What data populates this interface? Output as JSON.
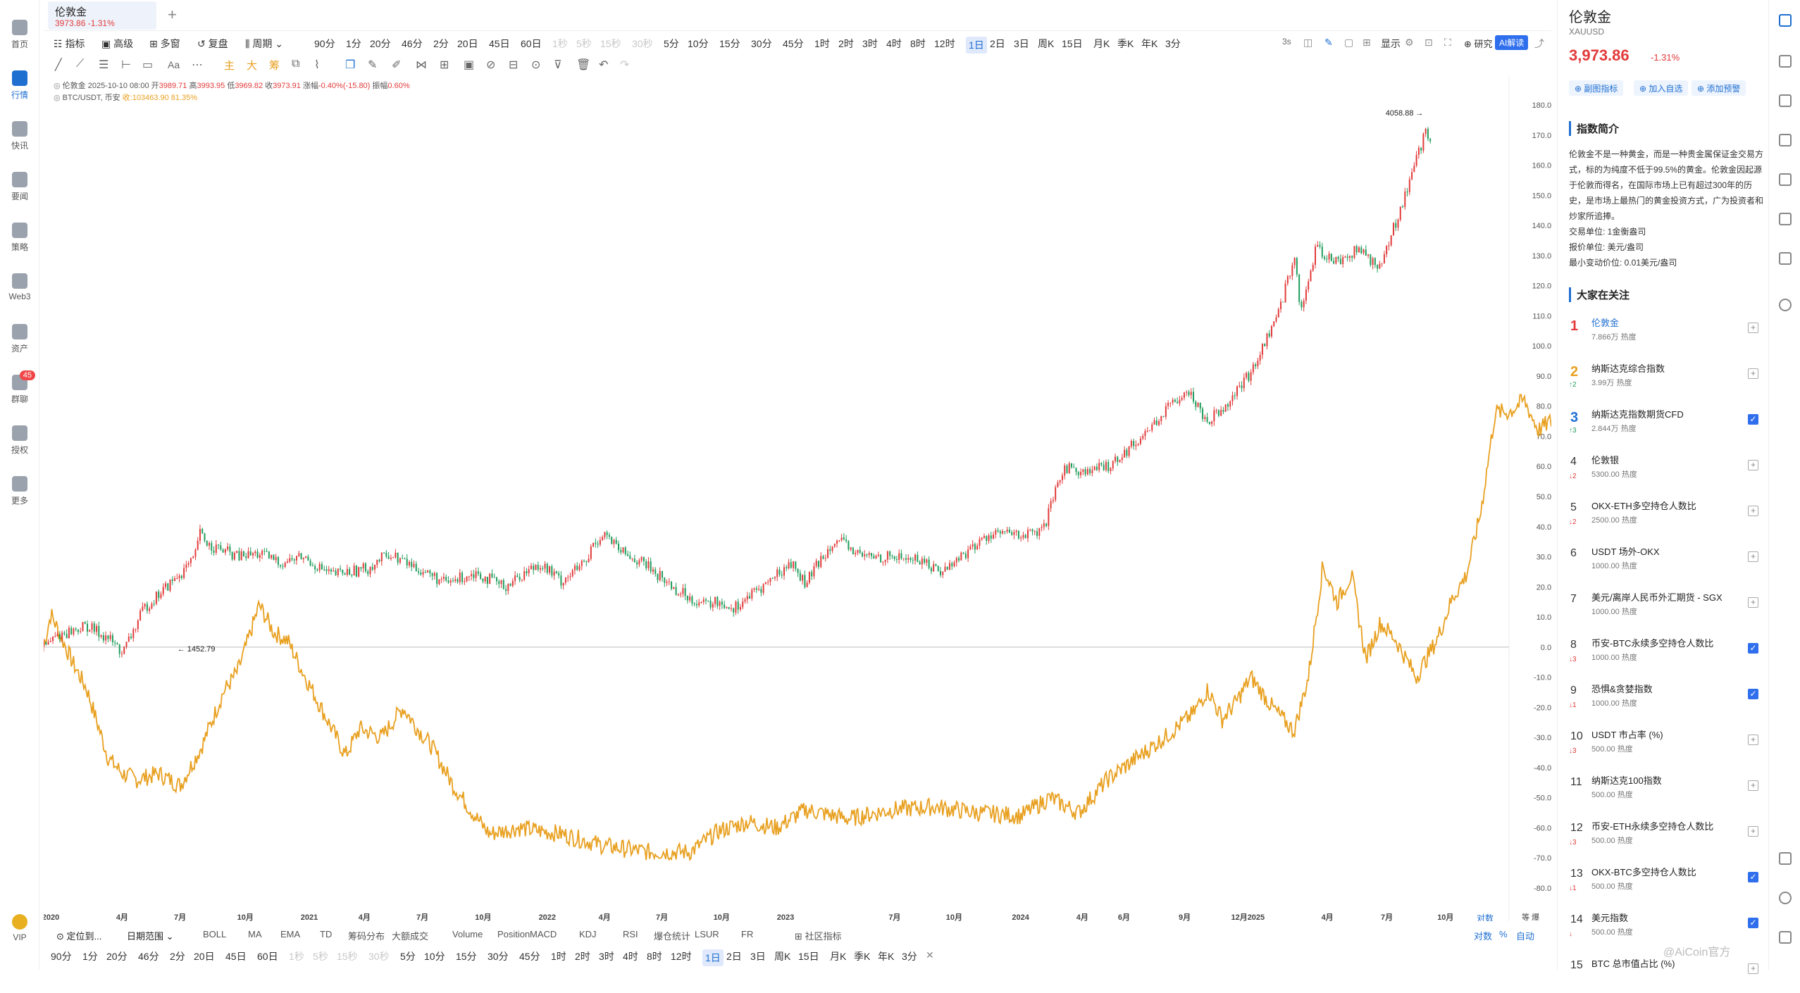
{
  "colors": {
    "up": "#e23a3a",
    "down": "#1f9d5c",
    "accent": "#1f6fd1",
    "btc_line": "#e8a020",
    "ai": "#2f6fed"
  },
  "left_nav": [
    {
      "label": "首页",
      "icon": "home-icon"
    },
    {
      "label": "行情",
      "icon": "chart-icon",
      "active": true
    },
    {
      "label": "快讯",
      "icon": "news-icon"
    },
    {
      "label": "要闻",
      "icon": "article-icon"
    },
    {
      "label": "策略",
      "icon": "strategy-icon"
    },
    {
      "label": "Web3",
      "icon": "web3-icon"
    },
    {
      "label": "资产",
      "icon": "wallet-icon"
    },
    {
      "label": "群聊",
      "icon": "chat-icon",
      "badge": "45"
    },
    {
      "label": "授权",
      "icon": "key-icon"
    },
    {
      "label": "更多",
      "icon": "more-icon"
    },
    {
      "label": "VIP",
      "icon": "vip-icon"
    }
  ],
  "tab": {
    "title": "伦敦金",
    "price": "3973.86",
    "change": "-1.31%",
    "add": "+"
  },
  "toolbar1": {
    "items": [
      "指标",
      "高级",
      "多窗",
      "复盘",
      "周期",
      "90分",
      "1分",
      "20分",
      "46分",
      "2分",
      "20日",
      "45日",
      "60日",
      "1秒",
      "5秒",
      "15秒",
      "30秒",
      "5分",
      "10分",
      "15分",
      "30分",
      "45分",
      "1时",
      "2时",
      "3时",
      "4时",
      "8时",
      "12时",
      "1日",
      "2日",
      "3日",
      "周K",
      "15日",
      "月K",
      "季K",
      "年K",
      "3分"
    ],
    "muted": [
      "1秒",
      "5秒",
      "15秒",
      "30秒"
    ],
    "selected": "1日",
    "right": {
      "interval": "3s",
      "display": "显示",
      "research": "研究",
      "ai": "AI解读"
    }
  },
  "toolbar2": {
    "text_tool": "Aa",
    "main": "主",
    "big": "大",
    "chip": "筹"
  },
  "legend": {
    "line1_name": "伦敦金",
    "line1_time": "2025-10-10 08:00",
    "open_label": "开",
    "open": "3989.71",
    "high_label": "高",
    "high": "3993.95",
    "low_label": "低",
    "low": "3969.82",
    "close_label": "收",
    "close": "3973.91",
    "chg_label": "涨幅",
    "chg": "-0.40%(-15.80)",
    "amp_label": "振幅",
    "amp": "0.60%",
    "line2_name": "BTC/USDT, 币安",
    "line2_close": "收:103463.90",
    "line2_pct": "81.35%"
  },
  "chart_data": {
    "type": "line",
    "title": "伦敦金 vs BTC/USDT (相对涨幅)",
    "y_unit": "%",
    "ylim": [
      -80,
      180
    ],
    "y_ticks": [
      "180.00%",
      "170.00%",
      "160.00%",
      "150.00%",
      "140.00%",
      "130.00%",
      "120.00%",
      "110.00%",
      "100.00%",
      "90.00%",
      "80.00%",
      "70.00%",
      "60.00%",
      "50.00%",
      "40.00%",
      "30.00%",
      "20.00%",
      "10.00%",
      "0.00%",
      "-10.00%",
      "-20.00%",
      "-30.00%",
      "-40.00%",
      "-50.00%",
      "-60.00%",
      "-70.00%",
      "-80.00%"
    ],
    "x_ticks": [
      {
        "label": "2020",
        "t": 0.0
      },
      {
        "label": "4月",
        "t": 0.0497
      },
      {
        "label": "7月",
        "t": 0.09
      },
      {
        "label": "10月",
        "t": 0.1354
      },
      {
        "label": "2021",
        "t": 0.1799
      },
      {
        "label": "4月",
        "t": 0.2183
      },
      {
        "label": "7月",
        "t": 0.2586
      },
      {
        "label": "10月",
        "t": 0.3009
      },
      {
        "label": "2022",
        "t": 0.3455
      },
      {
        "label": "4月",
        "t": 0.3854
      },
      {
        "label": "7月",
        "t": 0.4253
      },
      {
        "label": "10月",
        "t": 0.4668
      },
      {
        "label": "2023",
        "t": 0.5113
      },
      {
        "label": "7月",
        "t": 0.5872
      },
      {
        "label": "10月",
        "t": 0.6286
      },
      {
        "label": "2024",
        "t": 0.6748
      },
      {
        "label": "4月",
        "t": 0.7178
      },
      {
        "label": "6月",
        "t": 0.7468
      },
      {
        "label": "9月",
        "t": 0.789
      },
      {
        "label": "12月2025",
        "t": 0.833
      },
      {
        "label": "4月",
        "t": 0.8883
      },
      {
        "label": "7月",
        "t": 0.9297
      },
      {
        "label": "10月",
        "t": 0.9705
      }
    ],
    "annotations": {
      "max": "4058.88",
      "min": "1452.79"
    },
    "series": [
      {
        "name": "伦敦金",
        "style": "candles",
        "values": [
          [
            0,
            0
          ],
          [
            0.01,
            4
          ],
          [
            0.03,
            7
          ],
          [
            0.045,
            3
          ],
          [
            0.055,
            -2
          ],
          [
            0.07,
            13
          ],
          [
            0.09,
            22
          ],
          [
            0.105,
            29
          ],
          [
            0.108,
            38
          ],
          [
            0.115,
            34
          ],
          [
            0.135,
            30
          ],
          [
            0.15,
            31
          ],
          [
            0.165,
            28
          ],
          [
            0.18,
            30
          ],
          [
            0.2,
            24
          ],
          [
            0.225,
            26
          ],
          [
            0.24,
            31
          ],
          [
            0.265,
            25
          ],
          [
            0.28,
            21
          ],
          [
            0.3,
            25
          ],
          [
            0.32,
            20
          ],
          [
            0.345,
            28
          ],
          [
            0.36,
            22
          ],
          [
            0.38,
            29
          ],
          [
            0.365,
            25
          ],
          [
            0.39,
            38
          ],
          [
            0.4,
            32
          ],
          [
            0.42,
            27
          ],
          [
            0.44,
            19
          ],
          [
            0.46,
            14
          ],
          [
            0.47,
            15
          ],
          [
            0.48,
            13
          ],
          [
            0.5,
            20
          ],
          [
            0.52,
            28
          ],
          [
            0.53,
            21
          ],
          [
            0.55,
            36
          ],
          [
            0.57,
            30
          ],
          [
            0.59,
            30
          ],
          [
            0.61,
            29
          ],
          [
            0.625,
            25
          ],
          [
            0.635,
            29
          ],
          [
            0.66,
            38
          ],
          [
            0.68,
            37
          ],
          [
            0.695,
            38
          ],
          [
            0.71,
            60
          ],
          [
            0.725,
            58
          ],
          [
            0.74,
            60
          ],
          [
            0.76,
            68
          ],
          [
            0.78,
            78
          ],
          [
            0.795,
            86
          ],
          [
            0.81,
            75
          ],
          [
            0.825,
            82
          ],
          [
            0.84,
            91
          ],
          [
            0.86,
            112
          ],
          [
            0.87,
            130
          ],
          [
            0.875,
            111
          ],
          [
            0.885,
            132
          ],
          [
            0.9,
            128
          ],
          [
            0.915,
            132
          ],
          [
            0.93,
            126
          ],
          [
            0.945,
            147
          ],
          [
            0.955,
            162
          ],
          [
            0.962,
            171
          ],
          [
            0.965,
            168
          ]
        ]
      },
      {
        "name": "BTC/USDT",
        "style": "line",
        "values": [
          [
            0,
            0
          ],
          [
            0.005,
            11
          ],
          [
            0.02,
            -5
          ],
          [
            0.03,
            -14
          ],
          [
            0.045,
            -37
          ],
          [
            0.055,
            -42
          ],
          [
            0.065,
            -44
          ],
          [
            0.08,
            -42
          ],
          [
            0.095,
            -46
          ],
          [
            0.11,
            -33
          ],
          [
            0.125,
            -15
          ],
          [
            0.135,
            -8
          ],
          [
            0.14,
            -1
          ],
          [
            0.15,
            14
          ],
          [
            0.16,
            5
          ],
          [
            0.17,
            2
          ],
          [
            0.18,
            -8
          ],
          [
            0.195,
            -22
          ],
          [
            0.21,
            -36
          ],
          [
            0.22,
            -27
          ],
          [
            0.235,
            -30
          ],
          [
            0.25,
            -20
          ],
          [
            0.26,
            -27
          ],
          [
            0.27,
            -33
          ],
          [
            0.285,
            -46
          ],
          [
            0.3,
            -56
          ],
          [
            0.31,
            -62
          ],
          [
            0.33,
            -60
          ],
          [
            0.36,
            -62
          ],
          [
            0.39,
            -66
          ],
          [
            0.42,
            -68
          ],
          [
            0.45,
            -68
          ],
          [
            0.47,
            -61
          ],
          [
            0.49,
            -58
          ],
          [
            0.51,
            -60
          ],
          [
            0.53,
            -54
          ],
          [
            0.56,
            -57
          ],
          [
            0.59,
            -54
          ],
          [
            0.62,
            -53
          ],
          [
            0.65,
            -55
          ],
          [
            0.68,
            -56
          ],
          [
            0.7,
            -50
          ],
          [
            0.72,
            -55
          ],
          [
            0.74,
            -44
          ],
          [
            0.76,
            -37
          ],
          [
            0.78,
            -30
          ],
          [
            0.8,
            -22
          ],
          [
            0.81,
            -14
          ],
          [
            0.82,
            -24
          ],
          [
            0.83,
            -18
          ],
          [
            0.84,
            -10
          ],
          [
            0.855,
            -20
          ],
          [
            0.87,
            -28
          ],
          [
            0.88,
            -10
          ],
          [
            0.89,
            27
          ],
          [
            0.9,
            15
          ],
          [
            0.91,
            24
          ],
          [
            0.92,
            -4
          ],
          [
            0.93,
            8
          ],
          [
            0.94,
            3
          ],
          [
            0.955,
            -10
          ],
          [
            0.97,
            3
          ],
          [
            0.98,
            16
          ],
          [
            0.99,
            24
          ],
          [
            1.0,
            45
          ],
          [
            1.01,
            78
          ],
          [
            1.02,
            78
          ],
          [
            1.03,
            82
          ],
          [
            1.04,
            72
          ],
          [
            1.06,
            79
          ]
        ]
      }
    ],
    "scale_buttons": {
      "log": "对数",
      "pct": "%",
      "auto": "自动"
    }
  },
  "bottom_indicators": [
    "定位到...",
    "日期范围",
    "BOLL",
    "MA",
    "EMA",
    "TD",
    "筹码分布",
    "大额成交",
    "Volume",
    "Position",
    "MACD",
    "KDJ",
    "RSI",
    "爆仓统计",
    "LSUR",
    "FR",
    "社区指标"
  ],
  "bottom_periods": [
    "90分",
    "1分",
    "20分",
    "46分",
    "2分",
    "20日",
    "45日",
    "60日",
    "1秒",
    "5秒",
    "15秒",
    "30秒",
    "5分",
    "10分",
    "15分",
    "30分",
    "45分",
    "1时",
    "2时",
    "3时",
    "4时",
    "8时",
    "12时",
    "1日",
    "2日",
    "3日",
    "周K",
    "15日",
    "月K",
    "季K",
    "年K",
    "3分"
  ],
  "right_panel": {
    "title": "伦敦金",
    "code": "XAUUSD",
    "price": "3,973.86",
    "pct": "-1.31%",
    "buttons": [
      "副图指标",
      "加入自选",
      "添加预警"
    ],
    "intro_title": "指数简介",
    "intro": "伦敦金不是一种黄金，而是一种贵金属保证金交易方式，标的为纯度不低于99.5%的黄金。伦敦金因起源于伦敦而得名，在国际市场上已有超过300年的历史，是市场上最热门的黄金投资方式，广为投资者和炒家所追捧。",
    "facts": [
      "交易单位:    1金衡盎司",
      "报价单位:    美元/盎司",
      "最小变动价位:    0.01美元/盎司"
    ],
    "watch_title": "大家在关注",
    "watch": [
      {
        "rank": "1",
        "chg": "",
        "name": "伦敦金",
        "heat": "7.866万 热度",
        "checked": false
      },
      {
        "rank": "2",
        "chg": "↑2",
        "name": "纳斯达克综合指数",
        "heat": "3.99万 热度",
        "checked": false
      },
      {
        "rank": "3",
        "chg": "↑3",
        "name": "纳斯达克指数期货CFD",
        "heat": "2.844万 热度",
        "checked": true
      },
      {
        "rank": "4",
        "chg": "↓2",
        "name": "伦敦银",
        "heat": "5300.00 热度",
        "checked": false
      },
      {
        "rank": "5",
        "chg": "↓2",
        "name": "OKX-ETH多空持仓人数比",
        "heat": "2500.00 热度",
        "checked": false
      },
      {
        "rank": "6",
        "chg": "",
        "name": "USDT 场外-OKX",
        "heat": "1000.00 热度",
        "checked": false
      },
      {
        "rank": "7",
        "chg": "",
        "name": "美元/离岸人民币外汇期货 - SGX",
        "heat": "1000.00 热度",
        "checked": false
      },
      {
        "rank": "8",
        "chg": "↓3",
        "name": "币安-BTC永续多空持仓人数比",
        "heat": "1000.00 热度",
        "checked": true
      },
      {
        "rank": "9",
        "chg": "↓1",
        "name": "恐惧&贪婪指数",
        "heat": "1000.00 热度",
        "checked": true
      },
      {
        "rank": "10",
        "chg": "↓3",
        "name": "USDT 市占率 (%)",
        "heat": "500.00 热度",
        "checked": false
      },
      {
        "rank": "11",
        "chg": "",
        "name": "纳斯达克100指数",
        "heat": "500.00 热度",
        "checked": false
      },
      {
        "rank": "12",
        "chg": "↓3",
        "name": "币安-ETH永续多空持仓人数比",
        "heat": "500.00 热度",
        "checked": false
      },
      {
        "rank": "13",
        "chg": "↓1",
        "name": "OKX-BTC多空持仓人数比",
        "heat": "500.00 热度",
        "checked": true
      },
      {
        "rank": "14",
        "chg": "↓",
        "name": "美元指数",
        "heat": "500.00 热度",
        "checked": true
      },
      {
        "rank": "15",
        "chg": "",
        "name": "BTC 总市值占比 (%)",
        "heat": "",
        "checked": false
      }
    ],
    "watermark": "@AiCoin官方"
  }
}
